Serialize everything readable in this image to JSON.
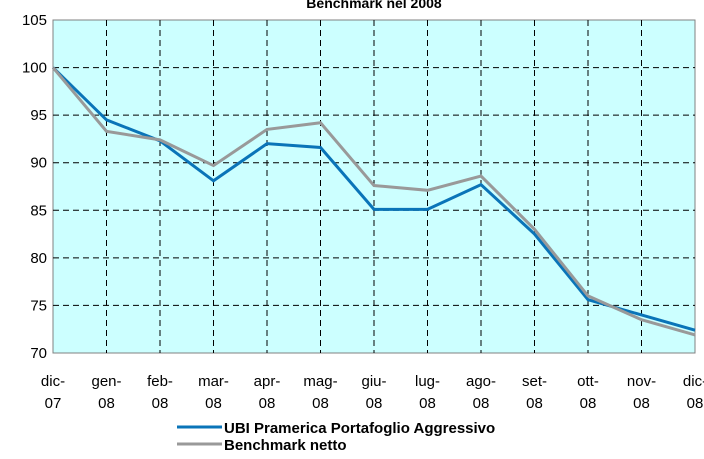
{
  "chart_data": {
    "type": "line",
    "title": "Benchmark nel 2008",
    "categories": [
      "dic-07",
      "gen-08",
      "feb-08",
      "mar-08",
      "apr-08",
      "mag-08",
      "giu-08",
      "lug-08",
      "ago-08",
      "set-08",
      "ott-08",
      "nov-08",
      "dic-08"
    ],
    "series": [
      {
        "name": "UBI Pramerica Portafoglio Aggressivo",
        "color": "#0a74b8",
        "values": [
          100,
          94.5,
          92.3,
          88.1,
          92,
          91.6,
          85.1,
          85.1,
          87.7,
          82.5,
          75.6,
          74,
          72.4
        ]
      },
      {
        "name": "Benchmark netto",
        "color": "#999999",
        "values": [
          100,
          93.3,
          92.4,
          89.7,
          93.5,
          94.2,
          87.6,
          87.1,
          88.6,
          83,
          76,
          73.5,
          71.9
        ]
      }
    ],
    "ylim": [
      70,
      105
    ],
    "yticks": [
      70,
      75,
      80,
      85,
      90,
      95,
      100,
      105
    ],
    "grid": true,
    "plot_background": "#ccffff"
  }
}
